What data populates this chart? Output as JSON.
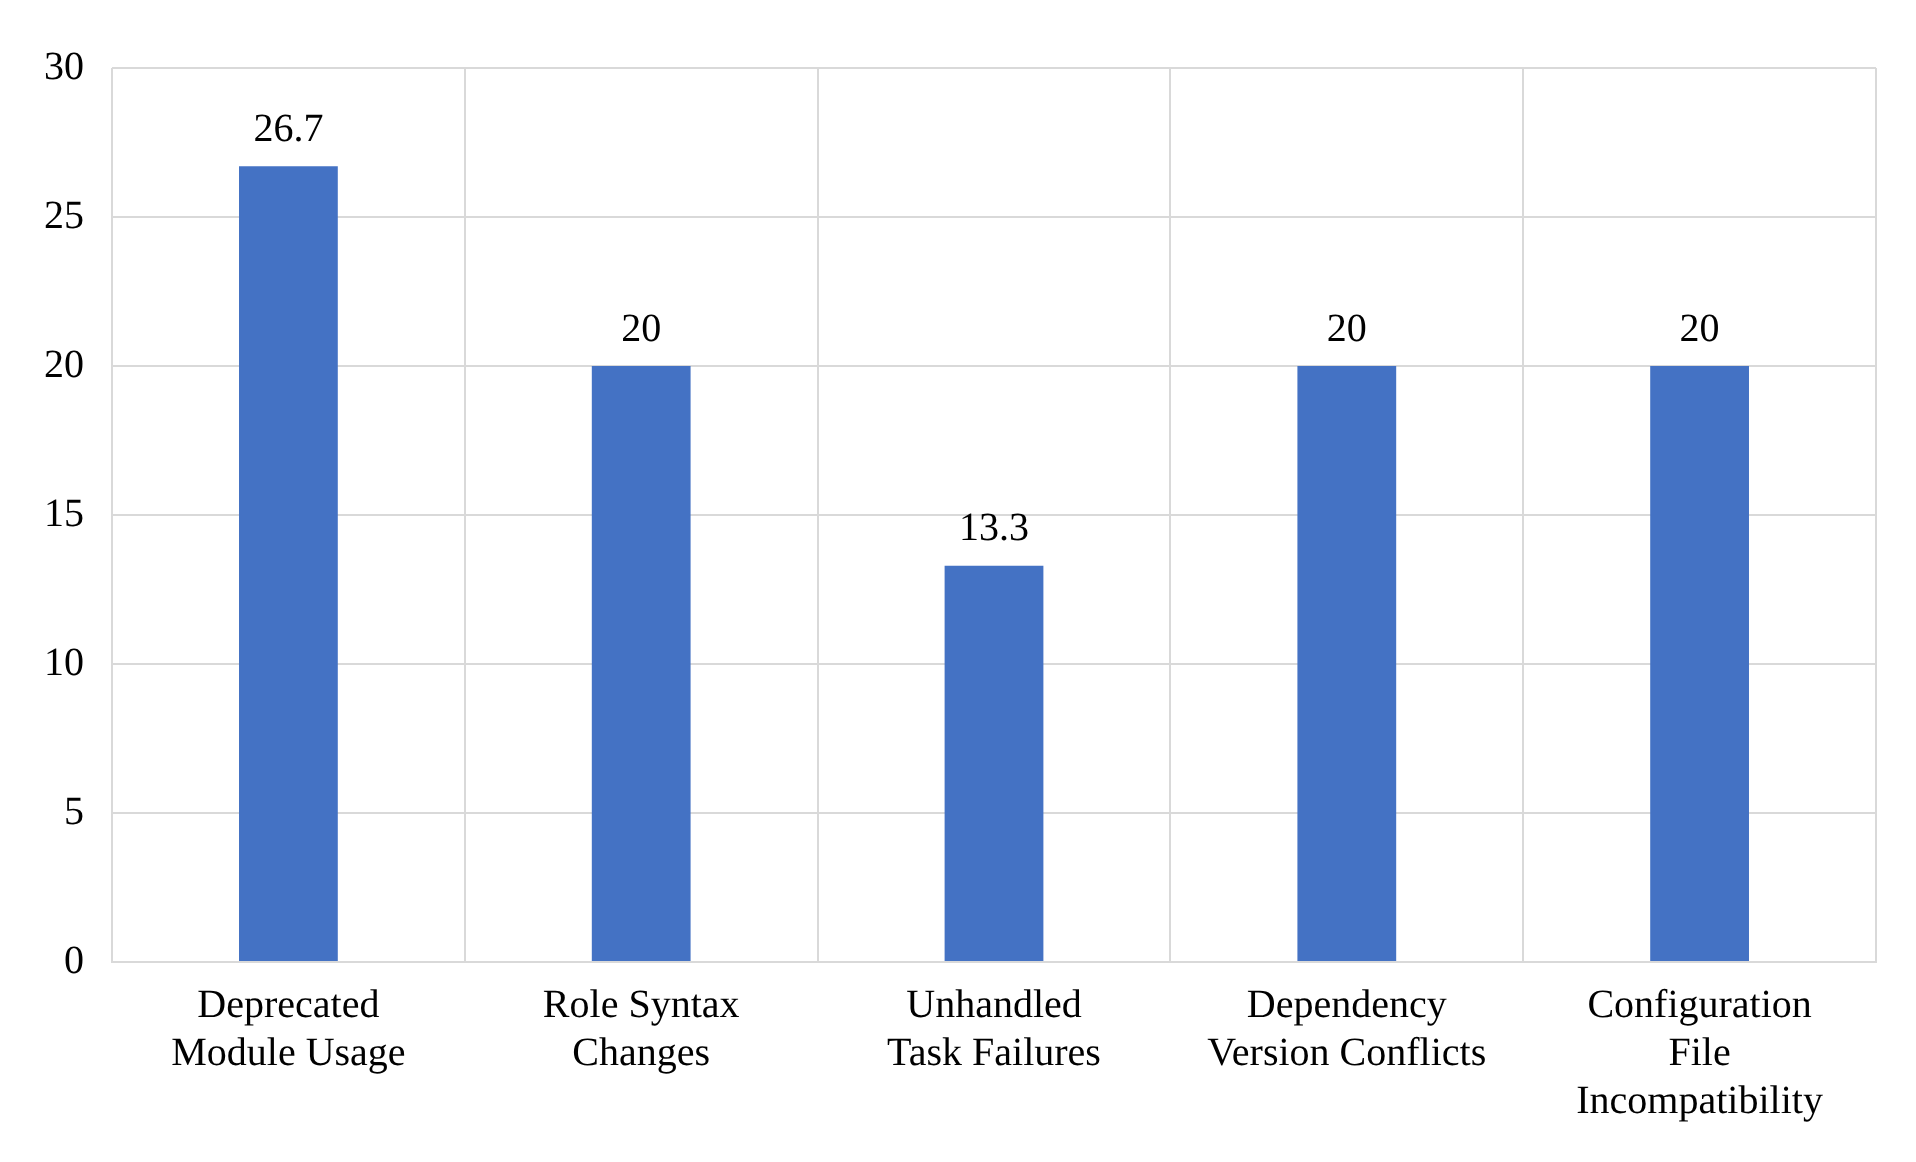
{
  "chart_data": {
    "type": "bar",
    "categories": [
      "Deprecated Module Usage",
      "Role Syntax Changes",
      "Unhandled Task Failures",
      "Dependency Version Conflicts",
      "Configuration File Incompatibility"
    ],
    "values": [
      26.7,
      20,
      13.3,
      20,
      20
    ],
    "color": "#4472c4",
    "ylim": [
      0,
      30
    ],
    "yticks": [
      0,
      5,
      10,
      15,
      20,
      25,
      30
    ],
    "grid": true,
    "data_labels": true,
    "legend": false
  }
}
